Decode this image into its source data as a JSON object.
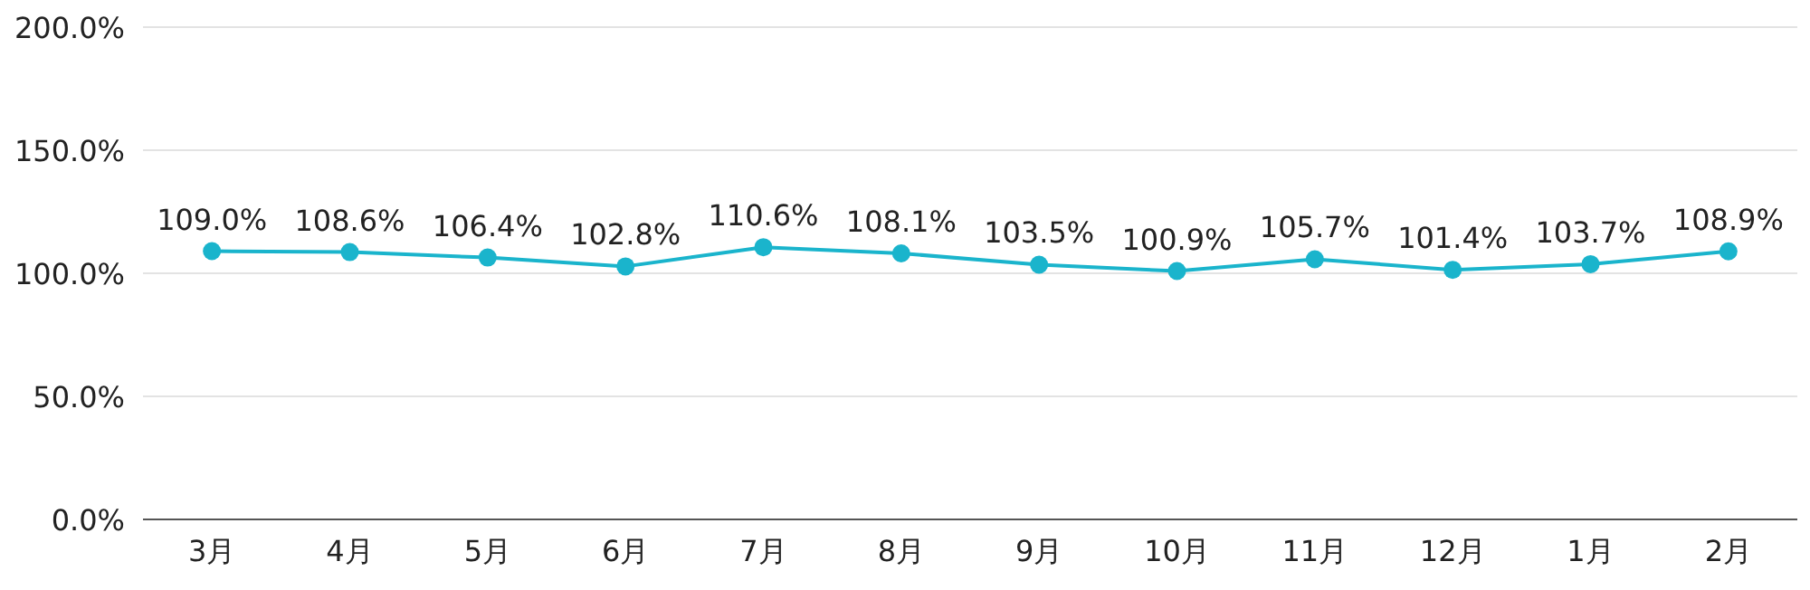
{
  "chart_data": {
    "type": "line",
    "categories": [
      "3月",
      "4月",
      "5月",
      "6月",
      "7月",
      "8月",
      "9月",
      "10月",
      "11月",
      "12月",
      "1月",
      "2月"
    ],
    "series": [
      {
        "color": "#1ab4cc",
        "values": [
          109.0,
          108.6,
          106.4,
          102.8,
          110.6,
          108.1,
          103.5,
          100.9,
          105.7,
          101.4,
          103.7,
          108.9
        ],
        "value_labels": [
          "109.0%",
          "108.6%",
          "106.4%",
          "102.8%",
          "110.6%",
          "108.1%",
          "103.5%",
          "100.9%",
          "105.7%",
          "101.4%",
          "103.7%",
          "108.9%"
        ]
      }
    ],
    "ylim": [
      0,
      200
    ],
    "yticks": [
      {
        "value": 0,
        "label": "0.0%"
      },
      {
        "value": 50,
        "label": "50.0%"
      },
      {
        "value": 100,
        "label": "100.0%"
      },
      {
        "value": 150,
        "label": "150.0%"
      },
      {
        "value": 200,
        "label": "200.0%"
      }
    ],
    "grid": "y",
    "marker": "circle",
    "line_style": "solid"
  }
}
